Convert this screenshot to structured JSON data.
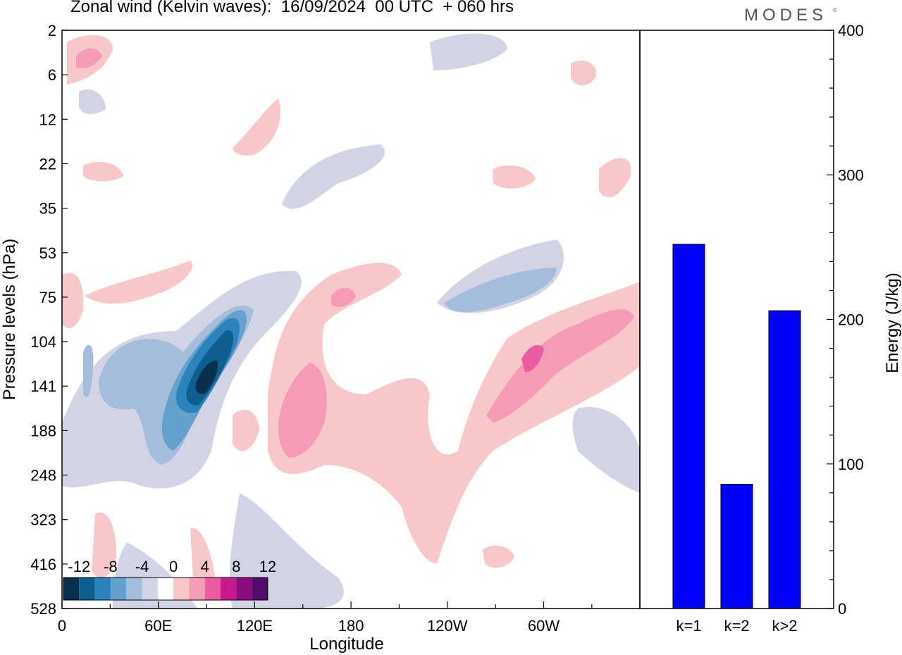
{
  "title": "Zonal wind (Kelvin waves):  16/09/2024  00 UTC  + 060 hrs",
  "brand": "MODES",
  "brand_mark": "©",
  "colors": {
    "bar": "#0000ff",
    "scale": [
      "#08304d",
      "#0e5e8f",
      "#2b82bd",
      "#66a1cd",
      "#a4bddb",
      "#d2d4e6",
      "#ffffff",
      "#f8c7c7",
      "#f59ab7",
      "#ea5ba3",
      "#c81a8e",
      "#8d0c7d",
      "#520c6a"
    ]
  },
  "chart_data": [
    {
      "type": "heatmap",
      "xlabel": "Longitude",
      "ylabel": "Pressure levels (hPa)",
      "xticks": [
        "0",
        "60E",
        "120E",
        "180",
        "120W",
        "60W"
      ],
      "yticks": [
        "2",
        "6",
        "12",
        "22",
        "35",
        "53",
        "75",
        "104",
        "141",
        "188",
        "248",
        "323",
        "416",
        "528"
      ],
      "colorbar_labels": [
        "-12",
        "-8",
        "-4",
        "0",
        "4",
        "8",
        "12"
      ],
      "colorbar_levels": [
        -14,
        -12,
        -10,
        -8,
        -6,
        -4,
        -2,
        2,
        4,
        6,
        8,
        10,
        12,
        14
      ],
      "field": [
        {
          "lon": 95,
          "hPa": 141,
          "value": -14
        },
        {
          "lon": 100,
          "hPa": 104,
          "value": -10
        },
        {
          "lon": 60,
          "hPa": 188,
          "value": -6
        },
        {
          "lon": 35,
          "hPa": 141,
          "value": -5
        },
        {
          "lon": 290,
          "hPa": 75,
          "value": -5
        },
        {
          "lon": 150,
          "hPa": 188,
          "value": 6
        },
        {
          "lon": 310,
          "hPa": 141,
          "value": 8
        },
        {
          "lon": 160,
          "hPa": 75,
          "value": 5
        },
        {
          "lon": 20,
          "hPa": 6,
          "value": 5
        },
        {
          "lon": 240,
          "hPa": 248,
          "value": 3
        }
      ]
    },
    {
      "type": "bar",
      "categories": [
        "k=1",
        "k=2",
        "k>2"
      ],
      "values": [
        252,
        86,
        206
      ],
      "ylabel": "Energy (J/kg)",
      "ylim": [
        0,
        400
      ],
      "yticks": [
        0,
        100,
        200,
        300,
        400
      ]
    }
  ]
}
